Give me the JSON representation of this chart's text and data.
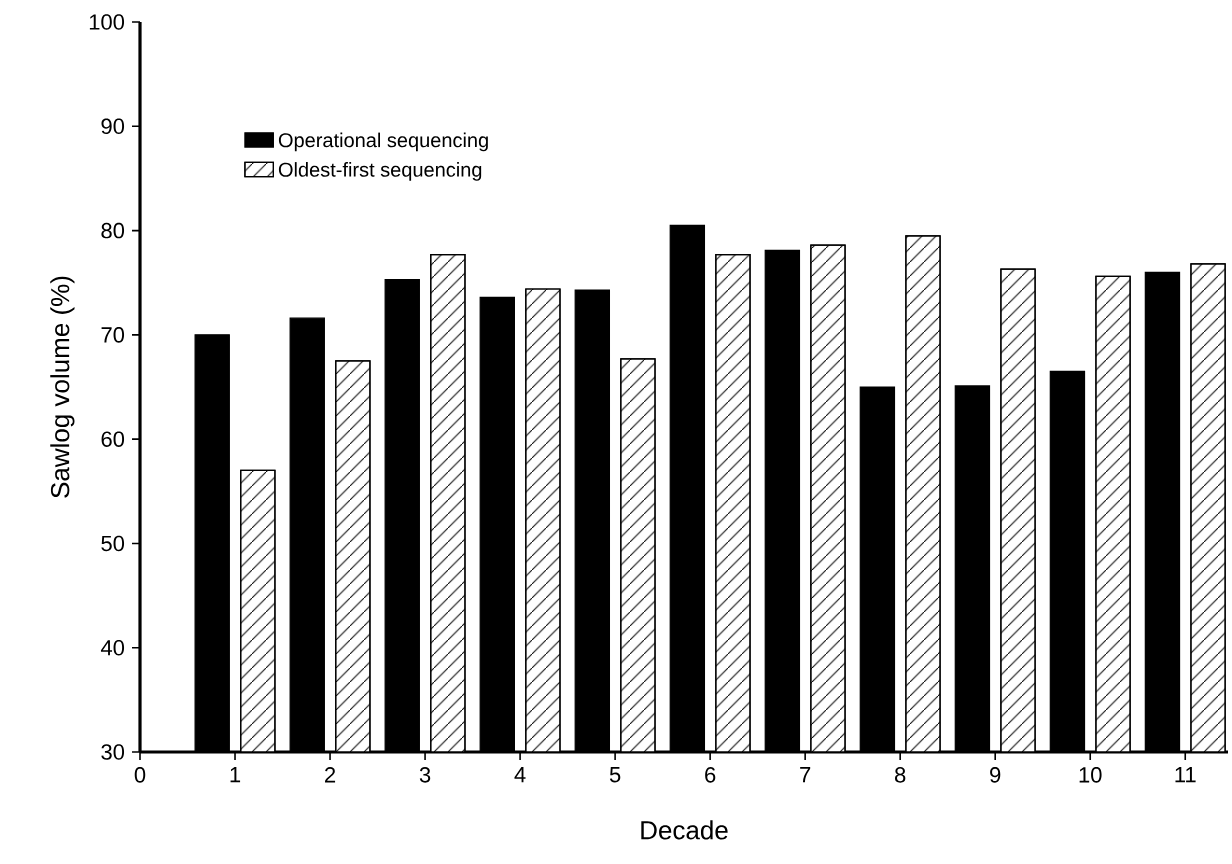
{
  "chart_data": {
    "type": "bar",
    "xlabel": "Decade",
    "ylabel": "Sawlog volume (%)",
    "x": [
      1,
      2,
      3,
      4,
      5,
      6,
      7,
      8,
      9,
      10,
      11
    ],
    "series": [
      {
        "name": "Operational sequencing",
        "color": "#000000",
        "values": [
          70.0,
          71.6,
          75.3,
          73.6,
          74.3,
          80.5,
          78.1,
          65.0,
          65.1,
          66.5,
          76.0
        ]
      },
      {
        "name": "Oldest-first sequencing",
        "color": "#000000",
        "values": [
          57.0,
          67.5,
          77.7,
          74.4,
          67.7,
          77.7,
          78.6,
          79.5,
          76.3,
          75.6,
          76.8
        ]
      }
    ],
    "xlim": [
      0,
      11.45
    ],
    "xticks": [
      0,
      1,
      2,
      3,
      4,
      5,
      6,
      7,
      8,
      9,
      10,
      11
    ],
    "ylim": [
      30,
      100
    ],
    "yticks": [
      30,
      40,
      50,
      60,
      70,
      80,
      90,
      100
    ],
    "grid": false,
    "legend": "top left"
  }
}
